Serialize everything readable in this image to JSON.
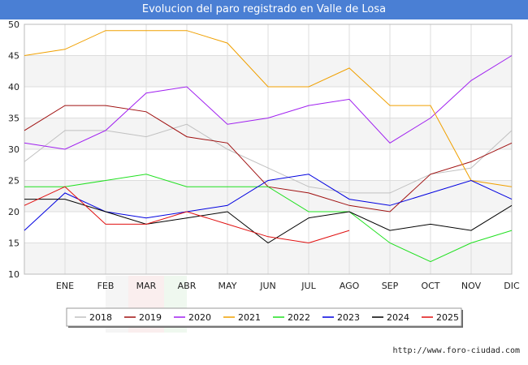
{
  "header": {
    "title": "Evolucion del paro registrado en Valle de Losa"
  },
  "footer": {
    "source": "http://www.foro-ciudad.com"
  },
  "chart_data": {
    "type": "line",
    "title": "Evolucion del paro registrado en Valle de Losa",
    "xlabel": "",
    "ylabel": "",
    "categories": [
      "",
      "ENE",
      "FEB",
      "MAR",
      "ABR",
      "MAY",
      "JUN",
      "JUL",
      "AGO",
      "SEP",
      "OCT",
      "NOV",
      "DIC"
    ],
    "ylim": [
      10,
      50
    ],
    "yticks": [
      10,
      15,
      20,
      25,
      30,
      35,
      40,
      45,
      50
    ],
    "grid": true,
    "legend_position": "bottom",
    "series": [
      {
        "name": "2018",
        "color": "#c0c0c0",
        "values": [
          28,
          33,
          33,
          32,
          34,
          30,
          27,
          24,
          23,
          23,
          26,
          27,
          33
        ]
      },
      {
        "name": "2019",
        "color": "#a01010",
        "values": [
          33,
          37,
          37,
          36,
          32,
          31,
          24,
          23,
          21,
          20,
          26,
          28,
          31
        ]
      },
      {
        "name": "2020",
        "color": "#a020f0",
        "values": [
          31,
          30,
          33,
          39,
          40,
          34,
          35,
          37,
          38,
          31,
          35,
          41,
          45
        ]
      },
      {
        "name": "2021",
        "color": "#f0a000",
        "values": [
          45,
          46,
          49,
          49,
          49,
          47,
          40,
          40,
          43,
          37,
          37,
          25,
          24
        ]
      },
      {
        "name": "2022",
        "color": "#20e020",
        "values": [
          24,
          24,
          25,
          26,
          24,
          24,
          24,
          20,
          20,
          15,
          12,
          15,
          17
        ]
      },
      {
        "name": "2023",
        "color": "#0000e0",
        "values": [
          17,
          23,
          20,
          19,
          20,
          21,
          25,
          26,
          22,
          21,
          23,
          25,
          22
        ]
      },
      {
        "name": "2024",
        "color": "#000000",
        "values": [
          22,
          22,
          20,
          18,
          19,
          20,
          15,
          19,
          20,
          17,
          18,
          17,
          21
        ]
      },
      {
        "name": "2025",
        "color": "#e01010",
        "values": [
          21,
          24,
          18,
          18,
          20,
          18,
          16,
          15,
          17,
          null,
          null,
          null,
          null
        ]
      }
    ]
  }
}
